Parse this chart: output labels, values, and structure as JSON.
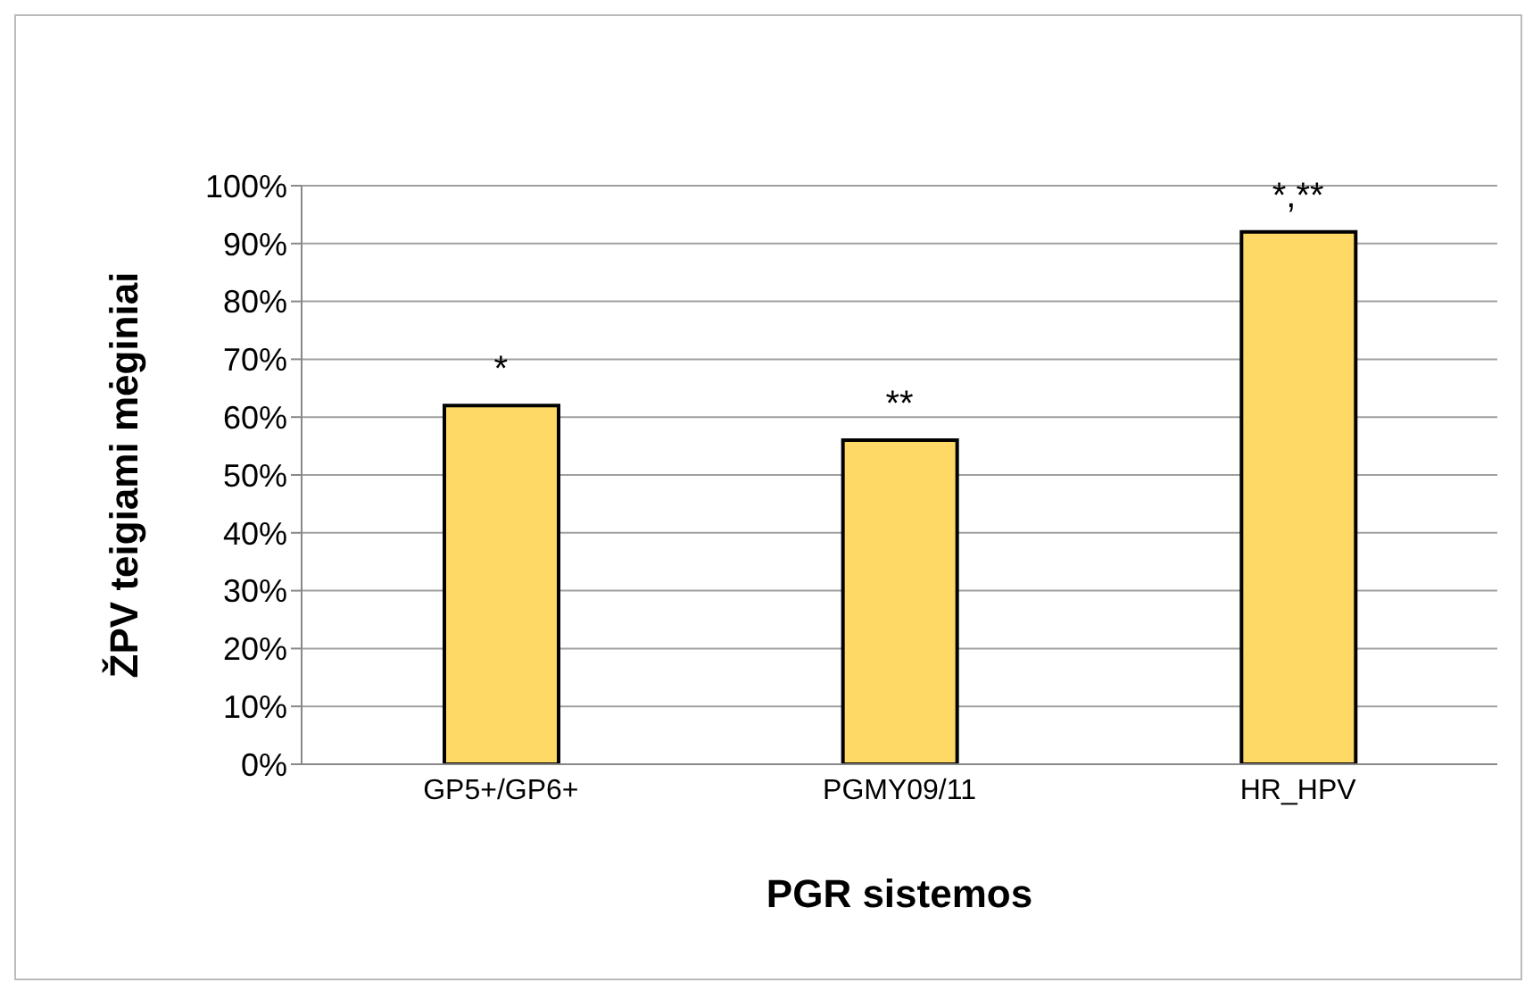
{
  "chart_data": {
    "type": "bar",
    "xlabel": "PGR sistemos",
    "ylabel": "ŽPV teigiami mėginiai",
    "categories": [
      "GP5+/GP6+",
      "PGMY09/11",
      "HR_HPV"
    ],
    "values": [
      62,
      56,
      92
    ],
    "color": "#ffd966",
    "ylim": [
      0,
      100
    ],
    "yticks": [
      {
        "value": 0,
        "label": "0%"
      },
      {
        "value": 10,
        "label": "10%"
      },
      {
        "value": 20,
        "label": "20%"
      },
      {
        "value": 30,
        "label": "30%"
      },
      {
        "value": 40,
        "label": "40%"
      },
      {
        "value": 50,
        "label": "50%"
      },
      {
        "value": 60,
        "label": "60%"
      },
      {
        "value": 70,
        "label": "70%"
      },
      {
        "value": 80,
        "label": "80%"
      },
      {
        "value": 90,
        "label": "90%"
      },
      {
        "value": 100,
        "label": "100%"
      }
    ],
    "grid": "y",
    "annotations": [
      {
        "text": "*",
        "x": "GP5+/GP6+",
        "y": 62
      },
      {
        "text": "**",
        "x": "PGMY09/11",
        "y": 56
      },
      {
        "text": "*,**",
        "x": "HR_HPV",
        "y": 92
      }
    ]
  }
}
